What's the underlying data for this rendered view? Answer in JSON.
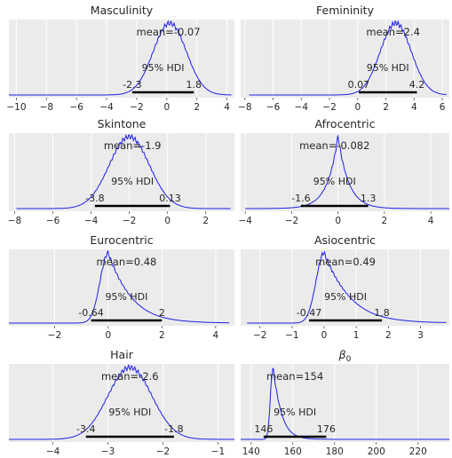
{
  "figure": {
    "grid": true,
    "background": "#ebebeb",
    "gridline_color": "#ffffff",
    "curve_color": "#1f1fe6",
    "hdi_color": "#000000",
    "hdi_label": "95% HDI"
  },
  "chart_data": [
    {
      "type": "line",
      "title": "Masculinity",
      "mean_label": "mean=-0.07",
      "hdi": [
        -2.3,
        1.8
      ],
      "hdi_labels": [
        "-2.3",
        "1.8"
      ],
      "xlim": [
        -10.5,
        4.5
      ],
      "xticks": [
        -10,
        -8,
        -6,
        -4,
        -2,
        0,
        2,
        4
      ],
      "xtick_labels": [
        "−10",
        "−8",
        "−6",
        "−4",
        "−2",
        "0",
        "2",
        "4"
      ],
      "density": {
        "kind": "normal",
        "mu": 0.2,
        "sigma": 1.1,
        "left_tail": 10,
        "x_range": [
          -10.5,
          4.3
        ]
      }
    },
    {
      "type": "line",
      "title": "Femininity",
      "mean_label": "mean=2.4",
      "hdi": [
        0.07,
        4.2
      ],
      "hdi_labels": [
        "0.07",
        "4.2"
      ],
      "xlim": [
        -8.3,
        6.5
      ],
      "xticks": [
        -8,
        -6,
        -4,
        -2,
        0,
        2,
        4,
        6
      ],
      "xtick_labels": [
        "−8",
        "−6",
        "−4",
        "−2",
        "0",
        "2",
        "4",
        "6"
      ],
      "density": {
        "kind": "normal",
        "mu": 2.7,
        "sigma": 1.1,
        "left_tail": 10,
        "x_range": [
          -7.7,
          6.3
        ]
      }
    },
    {
      "type": "line",
      "title": "Skintone",
      "mean_label": "mean=-1.9",
      "hdi": [
        -3.8,
        0.13
      ],
      "hdi_labels": [
        "-3.8",
        "0.13"
      ],
      "xlim": [
        -8.3,
        3.5
      ],
      "xticks": [
        -8,
        -6,
        -4,
        -2,
        0,
        2
      ],
      "xtick_labels": [
        "−8",
        "−6",
        "−4",
        "−2",
        "0",
        "2"
      ],
      "density": {
        "kind": "normal",
        "mu": -2.0,
        "sigma": 1.05,
        "left_tail": 8,
        "x_range": [
          -7.9,
          3.3
        ]
      }
    },
    {
      "type": "line",
      "title": "Afrocentric",
      "mean_label": "mean=-0.082",
      "hdi": [
        -1.6,
        1.3
      ],
      "hdi_labels": [
        "-1.6",
        "1.3"
      ],
      "xlim": [
        -4.2,
        4.8
      ],
      "xticks": [
        -4,
        -2,
        0,
        2,
        4
      ],
      "xtick_labels": [
        "−4",
        "−2",
        "0",
        "2",
        "4"
      ],
      "density": {
        "kind": "laplace",
        "mu": 0.0,
        "b": 0.45,
        "left_tail": 0,
        "x_range": [
          -4.0,
          4.8
        ]
      }
    },
    {
      "type": "line",
      "title": "Eurocentric",
      "mean_label": "mean=0.48",
      "hdi": [
        -0.64,
        2.0
      ],
      "hdi_labels": [
        "-0.64",
        "2"
      ],
      "xlim": [
        -3.7,
        4.7
      ],
      "xticks": [
        -2,
        0,
        2,
        4
      ],
      "xtick_labels": [
        "−2",
        "0",
        "2",
        "4"
      ],
      "density": {
        "kind": "skew",
        "mu": 0.0,
        "sl": 0.3,
        "sr": 0.75,
        "left_tail": 0,
        "x_range": [
          -3.7,
          4.5
        ]
      }
    },
    {
      "type": "line",
      "title": "Asiocentric",
      "mean_label": "mean=0.49",
      "hdi": [
        -0.47,
        1.8
      ],
      "hdi_labels": [
        "-0.47",
        "1.8"
      ],
      "xlim": [
        -2.6,
        3.9
      ],
      "xticks": [
        -2,
        -1,
        0,
        1,
        2,
        3
      ],
      "xtick_labels": [
        "−2",
        "−1",
        "0",
        "1",
        "2",
        "3"
      ],
      "density": {
        "kind": "skew",
        "mu": 0.0,
        "sl": 0.25,
        "sr": 0.7,
        "left_tail": 0,
        "x_range": [
          -2.4,
          3.8
        ]
      }
    },
    {
      "type": "line",
      "title": "Hair",
      "mean_label": "mean=-2.6",
      "hdi": [
        -3.4,
        -1.8
      ],
      "hdi_labels": [
        "-3.4",
        "-1.8"
      ],
      "xlim": [
        -4.8,
        -0.7
      ],
      "xticks": [
        -4,
        -3,
        -2,
        -1
      ],
      "xtick_labels": [
        "−4",
        "−3",
        "−2",
        "−1"
      ],
      "density": {
        "kind": "normal",
        "mu": -2.6,
        "sigma": 0.4,
        "left_tail": 0,
        "x_range": [
          -4.8,
          -0.7
        ]
      }
    },
    {
      "type": "line",
      "title": "β0",
      "title_is_math": true,
      "mean_label": "mean=154",
      "hdi": [
        146,
        176
      ],
      "hdi_labels": [
        "146",
        "176"
      ],
      "xlim": [
        135,
        235
      ],
      "xticks": [
        140,
        160,
        180,
        200,
        220
      ],
      "xtick_labels": [
        "140",
        "160",
        "180",
        "200",
        "220"
      ],
      "density": {
        "kind": "skew",
        "mu": 150.5,
        "sl": 1.2,
        "sr": 3.5,
        "left_tail": 0,
        "x_range": [
          135,
          235
        ]
      }
    }
  ]
}
